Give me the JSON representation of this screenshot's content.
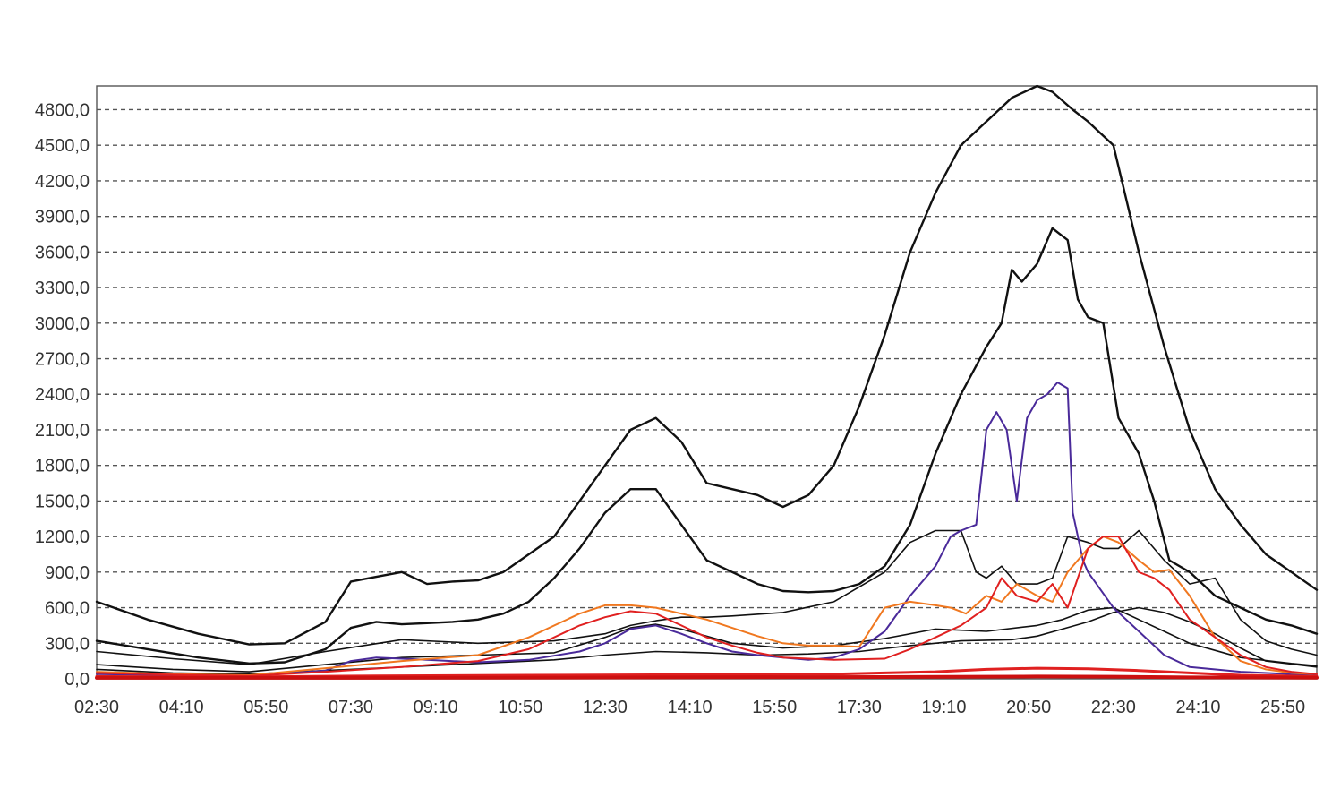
{
  "chart_data": {
    "type": "line",
    "title": "",
    "xlabel": "",
    "ylabel": "",
    "grid": true,
    "ylim": [
      0,
      5000
    ],
    "y_ticks": [
      "0,0",
      "300,0",
      "600,0",
      "900,0",
      "1200,0",
      "1500,0",
      "1800,0",
      "2100,0",
      "2400,0",
      "2700,0",
      "3000,0",
      "3300,0",
      "3600,0",
      "3900,0",
      "4200,0",
      "4500,0",
      "4800,0"
    ],
    "x_ticks": [
      "02:30",
      "04:10",
      "05:50",
      "07:30",
      "09:10",
      "10:50",
      "12:30",
      "14:10",
      "15:50",
      "17:30",
      "19:10",
      "20:50",
      "22:30",
      "24:10",
      "25:50"
    ],
    "x_hours_range": [
      2.5,
      26.5
    ],
    "series": [
      {
        "color": "#111111",
        "width": 2.4,
        "x": [
          2.5,
          3.5,
          4.5,
          5.5,
          6.2,
          7,
          7.5,
          8,
          8.5,
          9,
          9.5,
          10,
          10.5,
          11,
          11.5,
          12,
          12.5,
          13,
          13.5,
          14,
          14.5,
          15,
          15.5,
          16,
          16.5,
          17,
          17.5,
          18,
          18.5,
          19,
          19.5,
          20,
          20.5,
          21,
          21.3,
          21.7,
          22,
          22.5,
          23,
          23.5,
          24,
          24.5,
          25,
          25.5,
          26,
          26.5
        ],
        "y": [
          650,
          500,
          380,
          290,
          300,
          480,
          820,
          860,
          900,
          800,
          820,
          830,
          900,
          1050,
          1200,
          1500,
          1800,
          2100,
          2200,
          2000,
          1650,
          1600,
          1550,
          1450,
          1550,
          1800,
          2300,
          2900,
          3600,
          4100,
          4500,
          4700,
          4900,
          5000,
          4950,
          4800,
          4700,
          4500,
          3600,
          2800,
          2100,
          1600,
          1300,
          1050,
          900,
          750
        ]
      },
      {
        "color": "#111111",
        "width": 2.4,
        "x": [
          2.5,
          3.5,
          4.5,
          5.5,
          6.2,
          7,
          7.5,
          8,
          8.5,
          9,
          9.5,
          10,
          10.5,
          11,
          11.5,
          12,
          12.5,
          13,
          13.5,
          14,
          14.5,
          15,
          15.5,
          16,
          16.5,
          17,
          17.5,
          18,
          18.5,
          19,
          19.5,
          20,
          20.3,
          20.5,
          20.7,
          21,
          21.3,
          21.6,
          21.8,
          22,
          22.3,
          22.6,
          23,
          23.3,
          23.6,
          24,
          24.5,
          25,
          25.5,
          26,
          26.5
        ],
        "y": [
          320,
          250,
          180,
          130,
          140,
          250,
          430,
          480,
          460,
          470,
          480,
          500,
          550,
          650,
          850,
          1100,
          1400,
          1600,
          1600,
          1300,
          1000,
          900,
          800,
          740,
          730,
          740,
          800,
          950,
          1300,
          1900,
          2400,
          2800,
          3000,
          3450,
          3350,
          3500,
          3800,
          3700,
          3200,
          3050,
          3000,
          2200,
          1900,
          1500,
          1000,
          900,
          700,
          600,
          500,
          450,
          380
        ]
      },
      {
        "color": "#111111",
        "width": 1.6,
        "x": [
          2.5,
          4,
          5.5,
          7,
          8.5,
          10,
          11.5,
          12.5,
          13,
          13.5,
          14,
          14.5,
          15,
          16,
          17,
          18,
          18.5,
          19,
          19.5,
          19.8,
          20,
          20.3,
          20.6,
          21,
          21.3,
          21.6,
          22,
          22.3,
          22.6,
          23,
          23.5,
          24,
          24.5,
          25,
          25.5,
          26,
          26.5
        ],
        "y": [
          230,
          170,
          120,
          230,
          330,
          300,
          320,
          380,
          450,
          490,
          520,
          520,
          530,
          560,
          650,
          900,
          1150,
          1250,
          1250,
          900,
          850,
          950,
          800,
          800,
          850,
          1200,
          1150,
          1100,
          1100,
          1250,
          1000,
          800,
          850,
          500,
          320,
          250,
          200
        ]
      },
      {
        "color": "#111111",
        "width": 1.6,
        "x": [
          2.5,
          4,
          5.5,
          7,
          8.5,
          10,
          11.5,
          12.5,
          13,
          13.5,
          14,
          15,
          16,
          17,
          18,
          19,
          20,
          21,
          21.5,
          22,
          22.5,
          23,
          23.5,
          24,
          25,
          26,
          26.5
        ],
        "y": [
          120,
          80,
          60,
          120,
          180,
          200,
          220,
          350,
          430,
          460,
          420,
          300,
          260,
          280,
          340,
          420,
          400,
          450,
          500,
          580,
          600,
          500,
          400,
          300,
          180,
          130,
          110
        ]
      },
      {
        "color": "#111111",
        "width": 1.6,
        "x": [
          2.5,
          4,
          5.5,
          7,
          8.5,
          10,
          11.5,
          12.5,
          13.5,
          14.5,
          15.5,
          16.5,
          17.5,
          18.5,
          19.5,
          20.5,
          21,
          21.5,
          22,
          22.5,
          23,
          23.5,
          24,
          24.5,
          25,
          25.5,
          26.5
        ],
        "y": [
          80,
          50,
          40,
          70,
          100,
          130,
          160,
          200,
          230,
          220,
          200,
          210,
          230,
          280,
          320,
          330,
          360,
          420,
          480,
          560,
          600,
          560,
          480,
          380,
          260,
          150,
          100
        ]
      },
      {
        "color": "#4a2a9a",
        "width": 2.0,
        "x": [
          2.5,
          4,
          5.5,
          7,
          7.5,
          8,
          8.5,
          9,
          10,
          11,
          12,
          12.5,
          13,
          13.5,
          14,
          14.5,
          15,
          15.5,
          16,
          16.5,
          17,
          17.5,
          18,
          18.5,
          19,
          19.3,
          19.5,
          19.8,
          20,
          20.2,
          20.4,
          20.6,
          20.8,
          21,
          21.2,
          21.4,
          21.6,
          21.7,
          21.9,
          22,
          22.5,
          23,
          23.5,
          24,
          25,
          26,
          26.5
        ],
        "y": [
          40,
          30,
          25,
          70,
          150,
          180,
          170,
          160,
          140,
          160,
          230,
          300,
          420,
          450,
          380,
          300,
          230,
          200,
          180,
          160,
          180,
          250,
          400,
          700,
          950,
          1200,
          1250,
          1300,
          2100,
          2250,
          2100,
          1500,
          2200,
          2350,
          2400,
          2500,
          2450,
          1400,
          1000,
          900,
          600,
          400,
          200,
          100,
          60,
          40,
          30
        ]
      },
      {
        "color": "#f07820",
        "width": 2.0,
        "x": [
          2.5,
          4,
          5.5,
          7,
          8.5,
          10,
          11,
          12,
          12.5,
          13,
          13.5,
          14,
          14.5,
          15,
          15.5,
          16,
          16.5,
          17,
          17.5,
          18,
          18.5,
          19,
          19.3,
          19.6,
          20,
          20.3,
          20.6,
          21,
          21.3,
          21.6,
          22,
          22.3,
          22.6,
          23,
          23.3,
          23.6,
          24,
          24.5,
          25,
          25.5,
          26,
          26.5
        ],
        "y": [
          60,
          40,
          30,
          90,
          150,
          200,
          350,
          550,
          620,
          620,
          600,
          550,
          500,
          430,
          360,
          300,
          280,
          280,
          270,
          600,
          650,
          620,
          600,
          550,
          700,
          650,
          800,
          700,
          650,
          900,
          1100,
          1200,
          1150,
          1000,
          900,
          920,
          700,
          350,
          150,
          80,
          50,
          40
        ]
      },
      {
        "color": "#e02020",
        "width": 2.0,
        "x": [
          2.5,
          4,
          5.5,
          7,
          8.5,
          10,
          11,
          12,
          12.5,
          13,
          13.5,
          14,
          14.5,
          15,
          15.5,
          16,
          17,
          18,
          18.5,
          19,
          19.5,
          20,
          20.3,
          20.6,
          21,
          21.3,
          21.6,
          22,
          22.3,
          22.6,
          23,
          23.3,
          23.6,
          24,
          24.5,
          25,
          25.5,
          26,
          26.5
        ],
        "y": [
          50,
          35,
          25,
          60,
          100,
          150,
          250,
          450,
          520,
          570,
          550,
          450,
          350,
          280,
          220,
          180,
          160,
          170,
          250,
          350,
          450,
          600,
          850,
          700,
          650,
          800,
          600,
          1100,
          1200,
          1200,
          900,
          850,
          750,
          500,
          350,
          200,
          100,
          60,
          40
        ]
      },
      {
        "color": "#e02020",
        "width": 3.0,
        "x": [
          2.5,
          5,
          8,
          11,
          14,
          17,
          18,
          19,
          20,
          21,
          22,
          23,
          24,
          25,
          26.5
        ],
        "y": [
          20,
          15,
          25,
          30,
          35,
          40,
          50,
          60,
          80,
          90,
          85,
          70,
          50,
          30,
          20
        ]
      },
      {
        "color": "#cc1010",
        "width": 4.0,
        "x": [
          2.5,
          6,
          10,
          14,
          18,
          21,
          22.5,
          24,
          26.5
        ],
        "y": [
          8,
          8,
          10,
          12,
          15,
          20,
          18,
          12,
          10
        ]
      }
    ]
  }
}
